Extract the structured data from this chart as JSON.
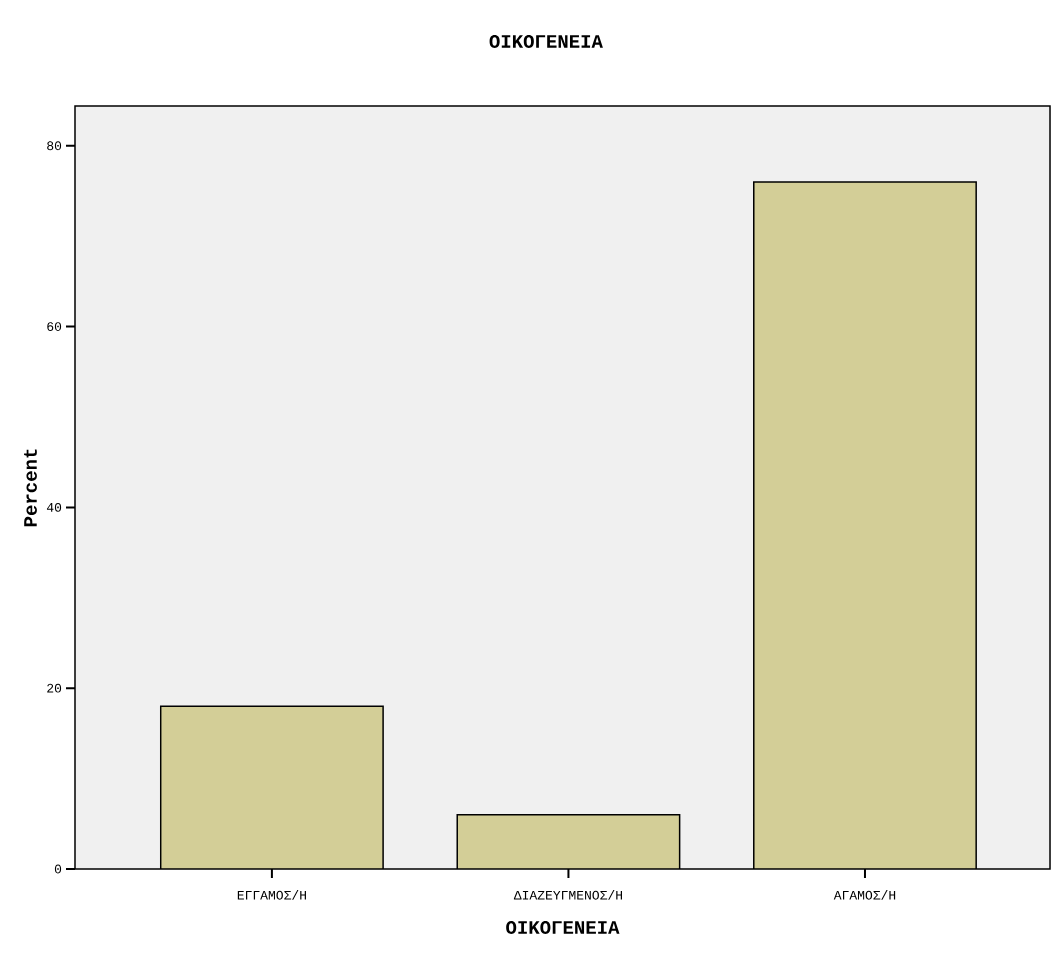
{
  "chart_data": {
    "type": "bar",
    "title": "ΟΙΚΟΓΕΝΕΙΑ",
    "xlabel": "ΟΙΚΟΓΕΝΕΙΑ",
    "ylabel": "Percent",
    "categories": [
      "ΕΓΓΑΜΟΣ/Η",
      "ΔΙΑΖΕΥΓΜΕΝΟΣ/Η",
      "ΑΓΑΜΟΣ/Η"
    ],
    "values": [
      18,
      6,
      76
    ],
    "color": "#d3ce97",
    "ylim": [
      0,
      84.4
    ],
    "yticks": [
      0,
      20,
      40,
      60,
      80
    ],
    "grid": false
  }
}
